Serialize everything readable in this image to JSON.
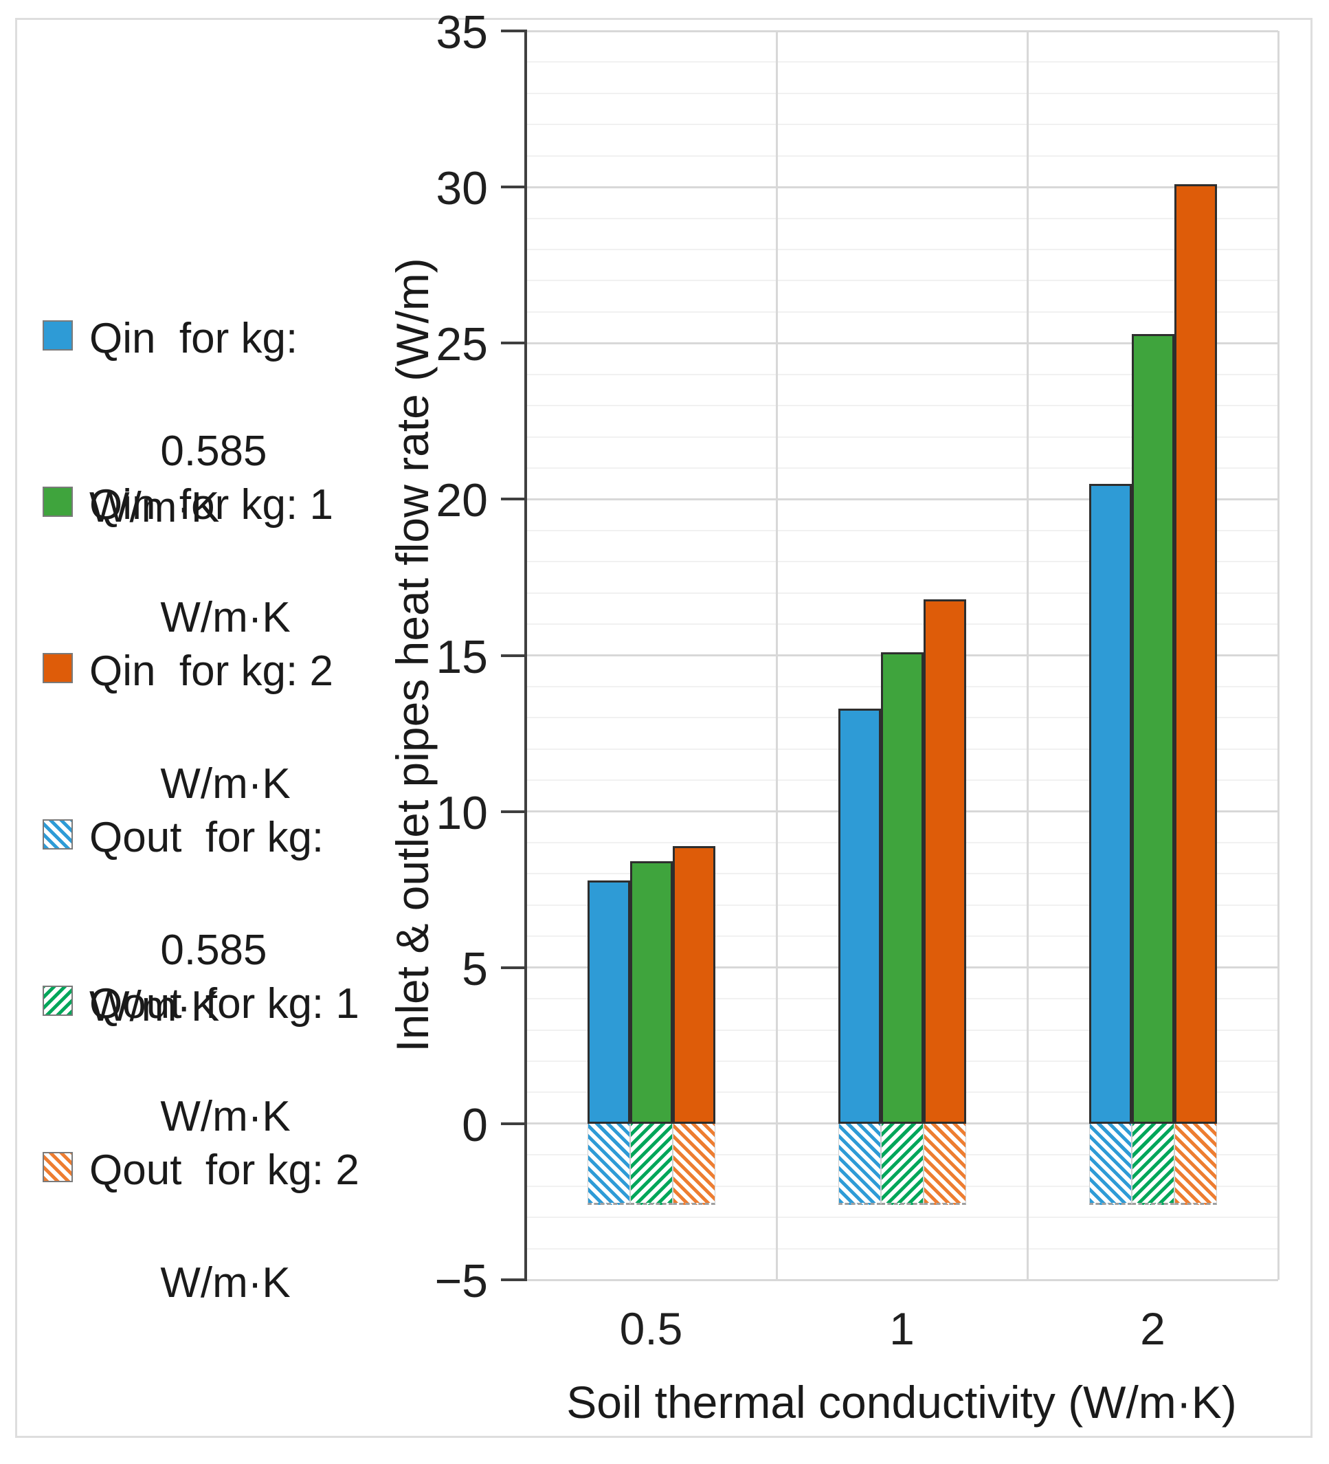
{
  "figure": {
    "background": "#ffffff",
    "border_color": "#dedede",
    "axis_color": "#3f3f3f",
    "major_grid_color": "#d8d8d8",
    "minor_grid_color": "#f1f1f1"
  },
  "chart_data": {
    "type": "bar",
    "title": "",
    "xlabel": "Soil thermal conductivity (W/m·K)",
    "ylabel": "Inlet & outlet pipes heat flow rate (W/m)",
    "categories": [
      "0.5",
      "1",
      "2"
    ],
    "ylim": [
      -5,
      35
    ],
    "y_major_step": 5,
    "y_minor_step": 1,
    "grid": "on",
    "legend_position": "left",
    "series": [
      {
        "name": "Qin  for kg: 0.585 W/m·K",
        "legend_line1": "Qin  for kg:",
        "legend_line2": "0.585 W/m·K",
        "values": [
          7.8,
          13.3,
          20.5
        ],
        "color": "#2E9BD6",
        "fill": "solid"
      },
      {
        "name": "Qin  for kg: 1 W/m·K",
        "legend_line1": "Qin  for kg: 1",
        "legend_line2": "W/m·K",
        "values": [
          8.4,
          15.1,
          25.3
        ],
        "color": "#3FA43D",
        "fill": "solid"
      },
      {
        "name": "Qin  for kg: 2 W/m·K",
        "legend_line1": "Qin  for kg: 2",
        "legend_line2": "W/m·K",
        "values": [
          8.9,
          16.8,
          30.1
        ],
        "color": "#DE5C09",
        "fill": "solid"
      },
      {
        "name": "Qout  for kg: 0.585 W/m·K",
        "legend_line1": "Qout  for kg:",
        "legend_line2": "0.585 W/m·K",
        "values": [
          -2.6,
          -2.6,
          -2.6
        ],
        "color": "#2E9BD6",
        "fill": "hatch",
        "hatch_dir": "\\"
      },
      {
        "name": "Qout  for kg: 1 W/m·K",
        "legend_line1": "Qout  for kg: 1",
        "legend_line2": "W/m·K",
        "values": [
          -2.6,
          -2.6,
          -2.6
        ],
        "color": "#00A65A",
        "fill": "hatch",
        "hatch_dir": "/"
      },
      {
        "name": "Qout  for kg: 2 W/m·K",
        "legend_line1": "Qout  for kg: 2",
        "legend_line2": "W/m·K",
        "values": [
          -2.6,
          -2.6,
          -2.6
        ],
        "color": "#ED7D31",
        "fill": "hatch",
        "hatch_dir": "\\"
      }
    ]
  }
}
